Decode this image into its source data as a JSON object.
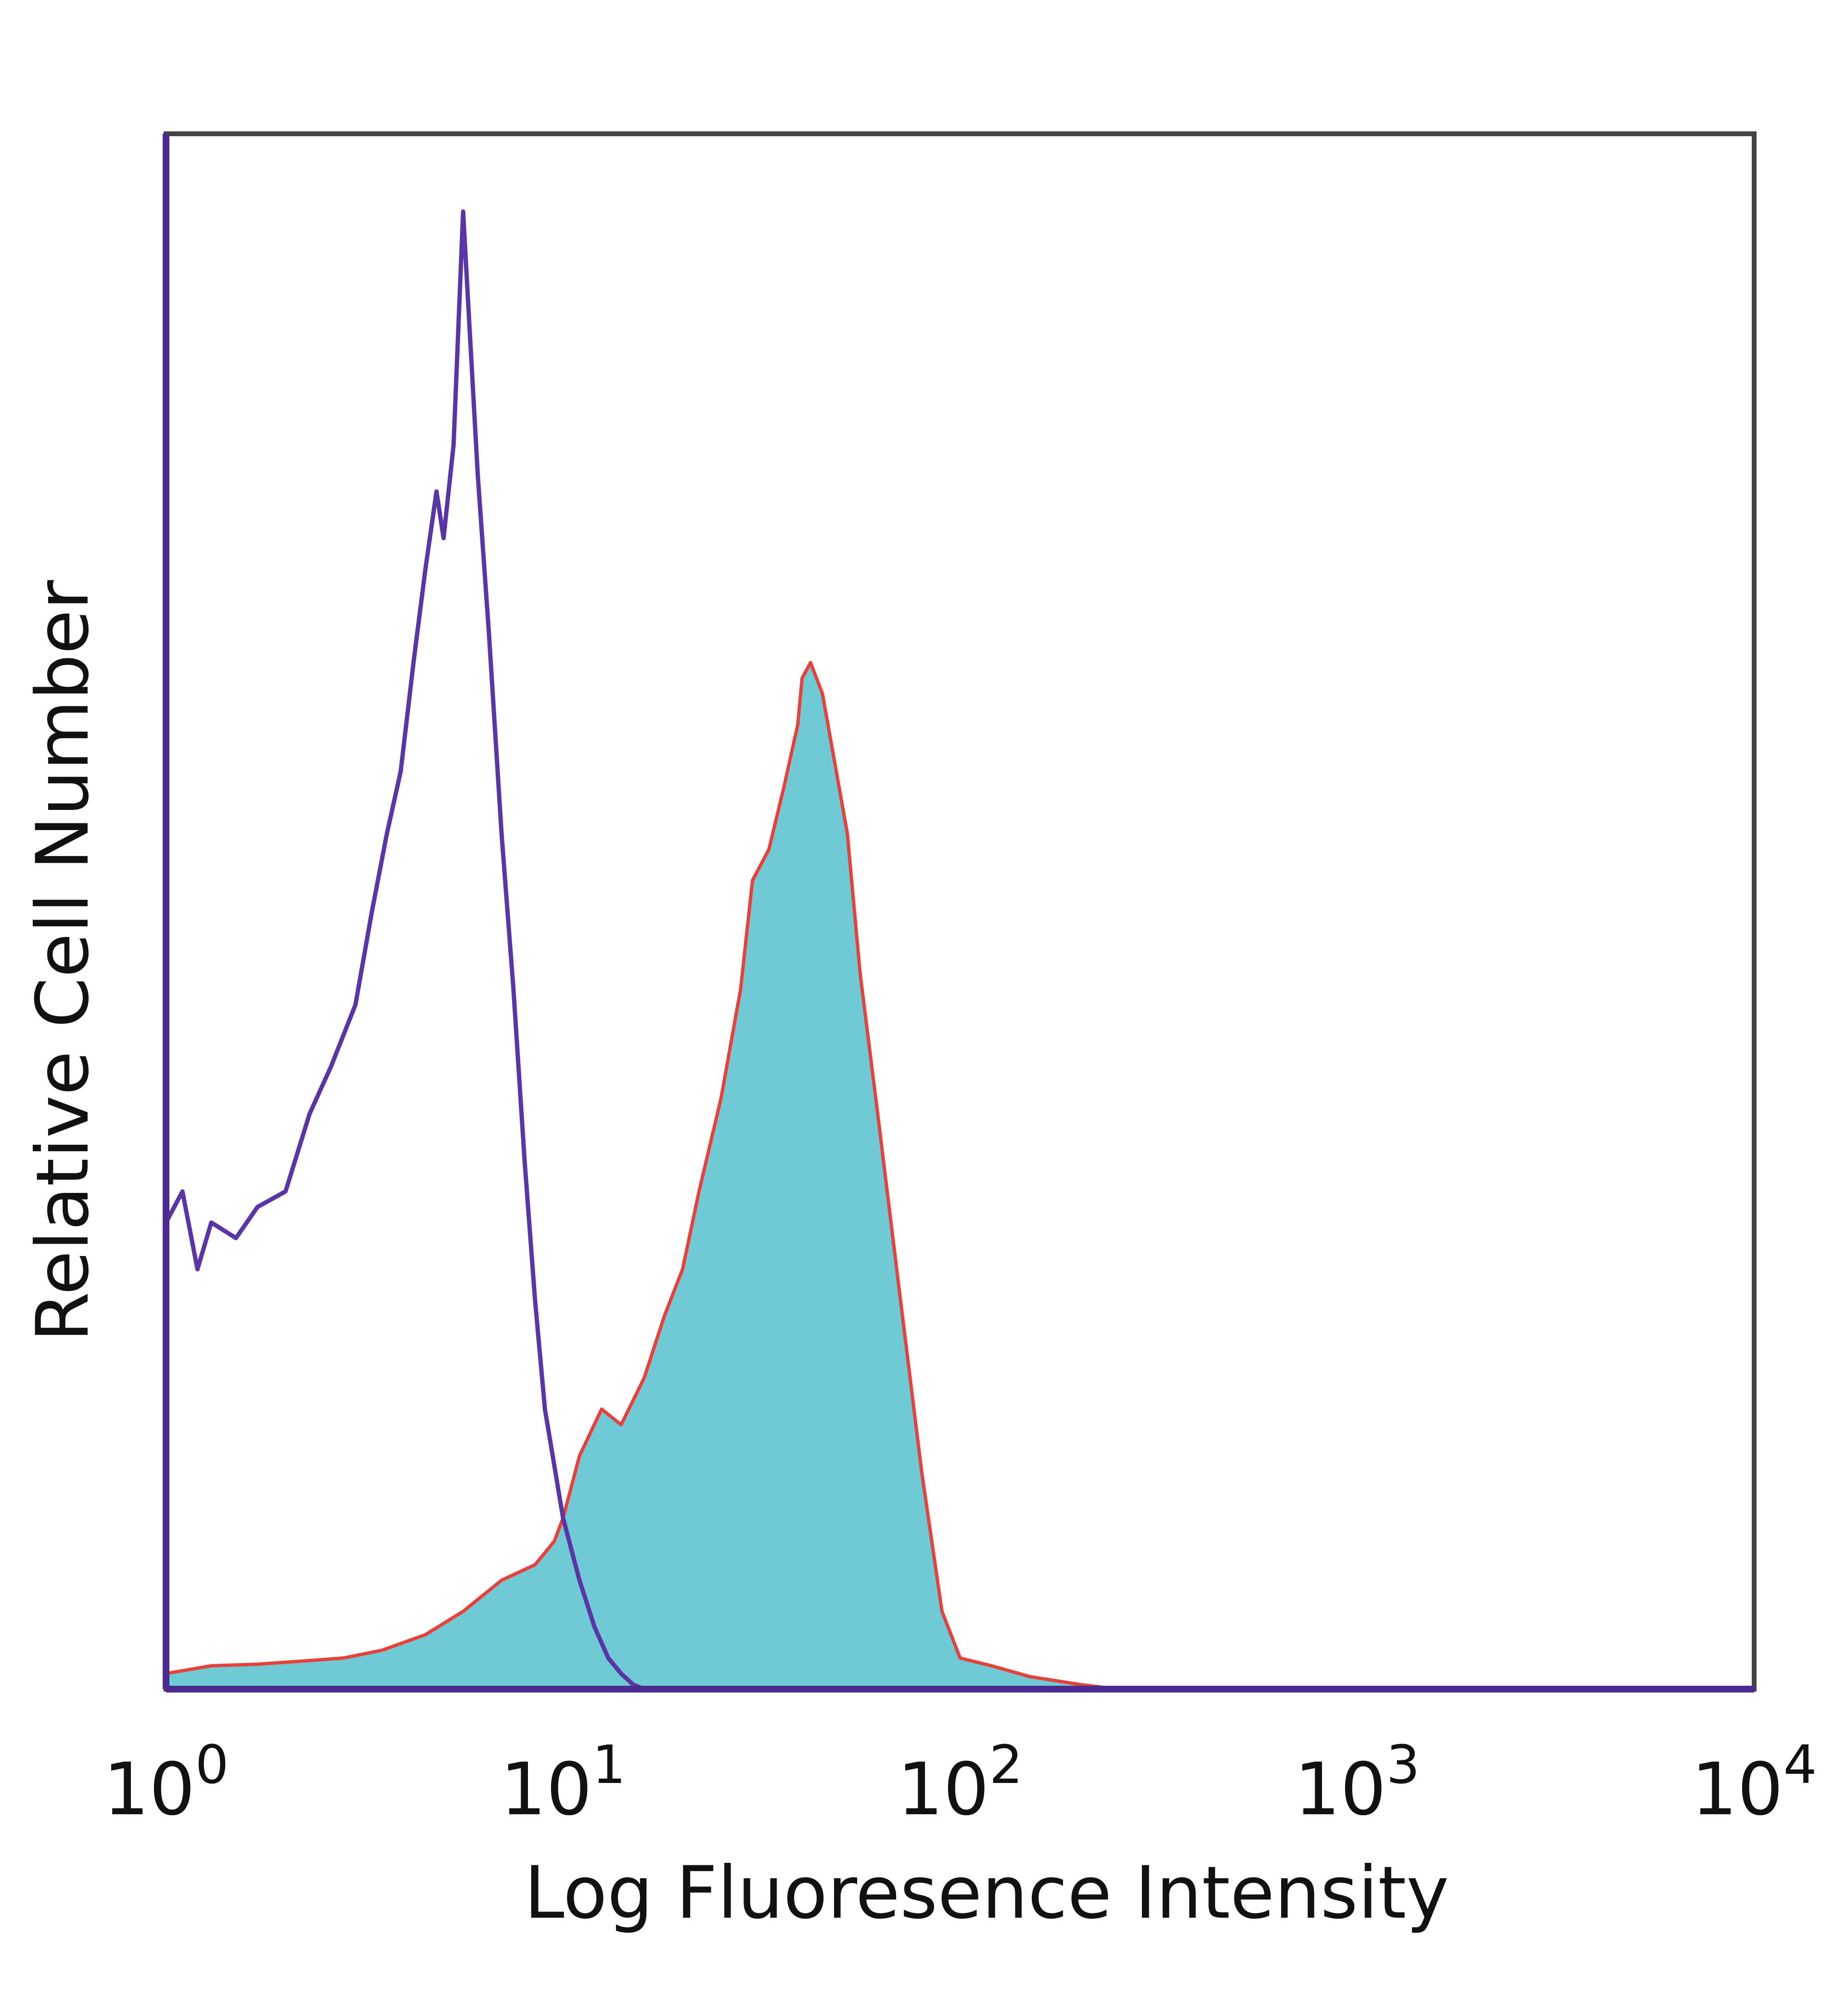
{
  "chart_data": {
    "type": "area",
    "title": "",
    "xlabel": "Log Fluoresence Intensity",
    "ylabel": "Relative Cell Number",
    "x_scale": "log",
    "xlim": [
      1,
      10000
    ],
    "ylim": [
      0,
      100
    ],
    "grid": false,
    "legend": "none",
    "x_ticks": [
      {
        "value": 1,
        "base": "10",
        "exp": "0"
      },
      {
        "value": 10,
        "base": "10",
        "exp": "1"
      },
      {
        "value": 100,
        "base": "10",
        "exp": "2"
      },
      {
        "value": 1000,
        "base": "10",
        "exp": "3"
      },
      {
        "value": 10000,
        "base": "10",
        "exp": "4"
      }
    ],
    "series": [
      {
        "style": "filled",
        "fill": "#6ecbd5",
        "stroke": "#e8403a",
        "x": [
          1.0,
          1.3,
          1.7,
          2.2,
          2.8,
          3.5,
          4.5,
          5.6,
          7.0,
          8.5,
          9.5,
          10.0,
          11.0,
          12.5,
          14.0,
          16.0,
          18.0,
          20.0,
          22.0,
          25.0,
          28.0,
          30.0,
          33.0,
          36.0,
          39.0,
          40.0,
          42.0,
          45.0,
          48.0,
          52.0,
          56.0,
          62.0,
          70.0,
          80.0,
          90.0,
          100.0,
          120.0,
          150.0,
          200.0,
          250.0
        ],
        "values": [
          1.0,
          1.5,
          1.6,
          1.8,
          2.0,
          2.5,
          3.5,
          5.0,
          7.0,
          8.0,
          9.5,
          11.0,
          15.0,
          18.0,
          17.0,
          20.0,
          24.0,
          27.0,
          32.0,
          38.0,
          45.0,
          52.0,
          54.0,
          58.0,
          62.0,
          65.0,
          66.0,
          64.0,
          60.0,
          55.0,
          46.0,
          37.0,
          26.0,
          14.0,
          5.0,
          2.0,
          1.5,
          0.8,
          0.3,
          0.0
        ]
      },
      {
        "style": "line",
        "stroke": "#5b34a5",
        "x": [
          1.0,
          1.1,
          1.2,
          1.3,
          1.5,
          1.7,
          2.0,
          2.3,
          2.6,
          3.0,
          3.3,
          3.6,
          3.9,
          4.2,
          4.5,
          4.8,
          5.0,
          5.3,
          5.6,
          5.8,
          6.1,
          6.5,
          7.0,
          7.5,
          8.0,
          8.5,
          9.0,
          10.0,
          11.0,
          12.0,
          13.0,
          14.0,
          15.0,
          16.0
        ],
        "values": [
          30.0,
          32.0,
          27.0,
          30.0,
          29.0,
          31.0,
          32.0,
          37.0,
          40.0,
          44.0,
          50.0,
          55.0,
          59.0,
          66.0,
          72.0,
          77.0,
          74.0,
          80.0,
          95.0,
          88.0,
          78.0,
          68.0,
          55.0,
          45.0,
          34.0,
          25.0,
          18.0,
          11.0,
          7.0,
          4.0,
          2.0,
          1.0,
          0.3,
          0.0
        ]
      }
    ]
  }
}
